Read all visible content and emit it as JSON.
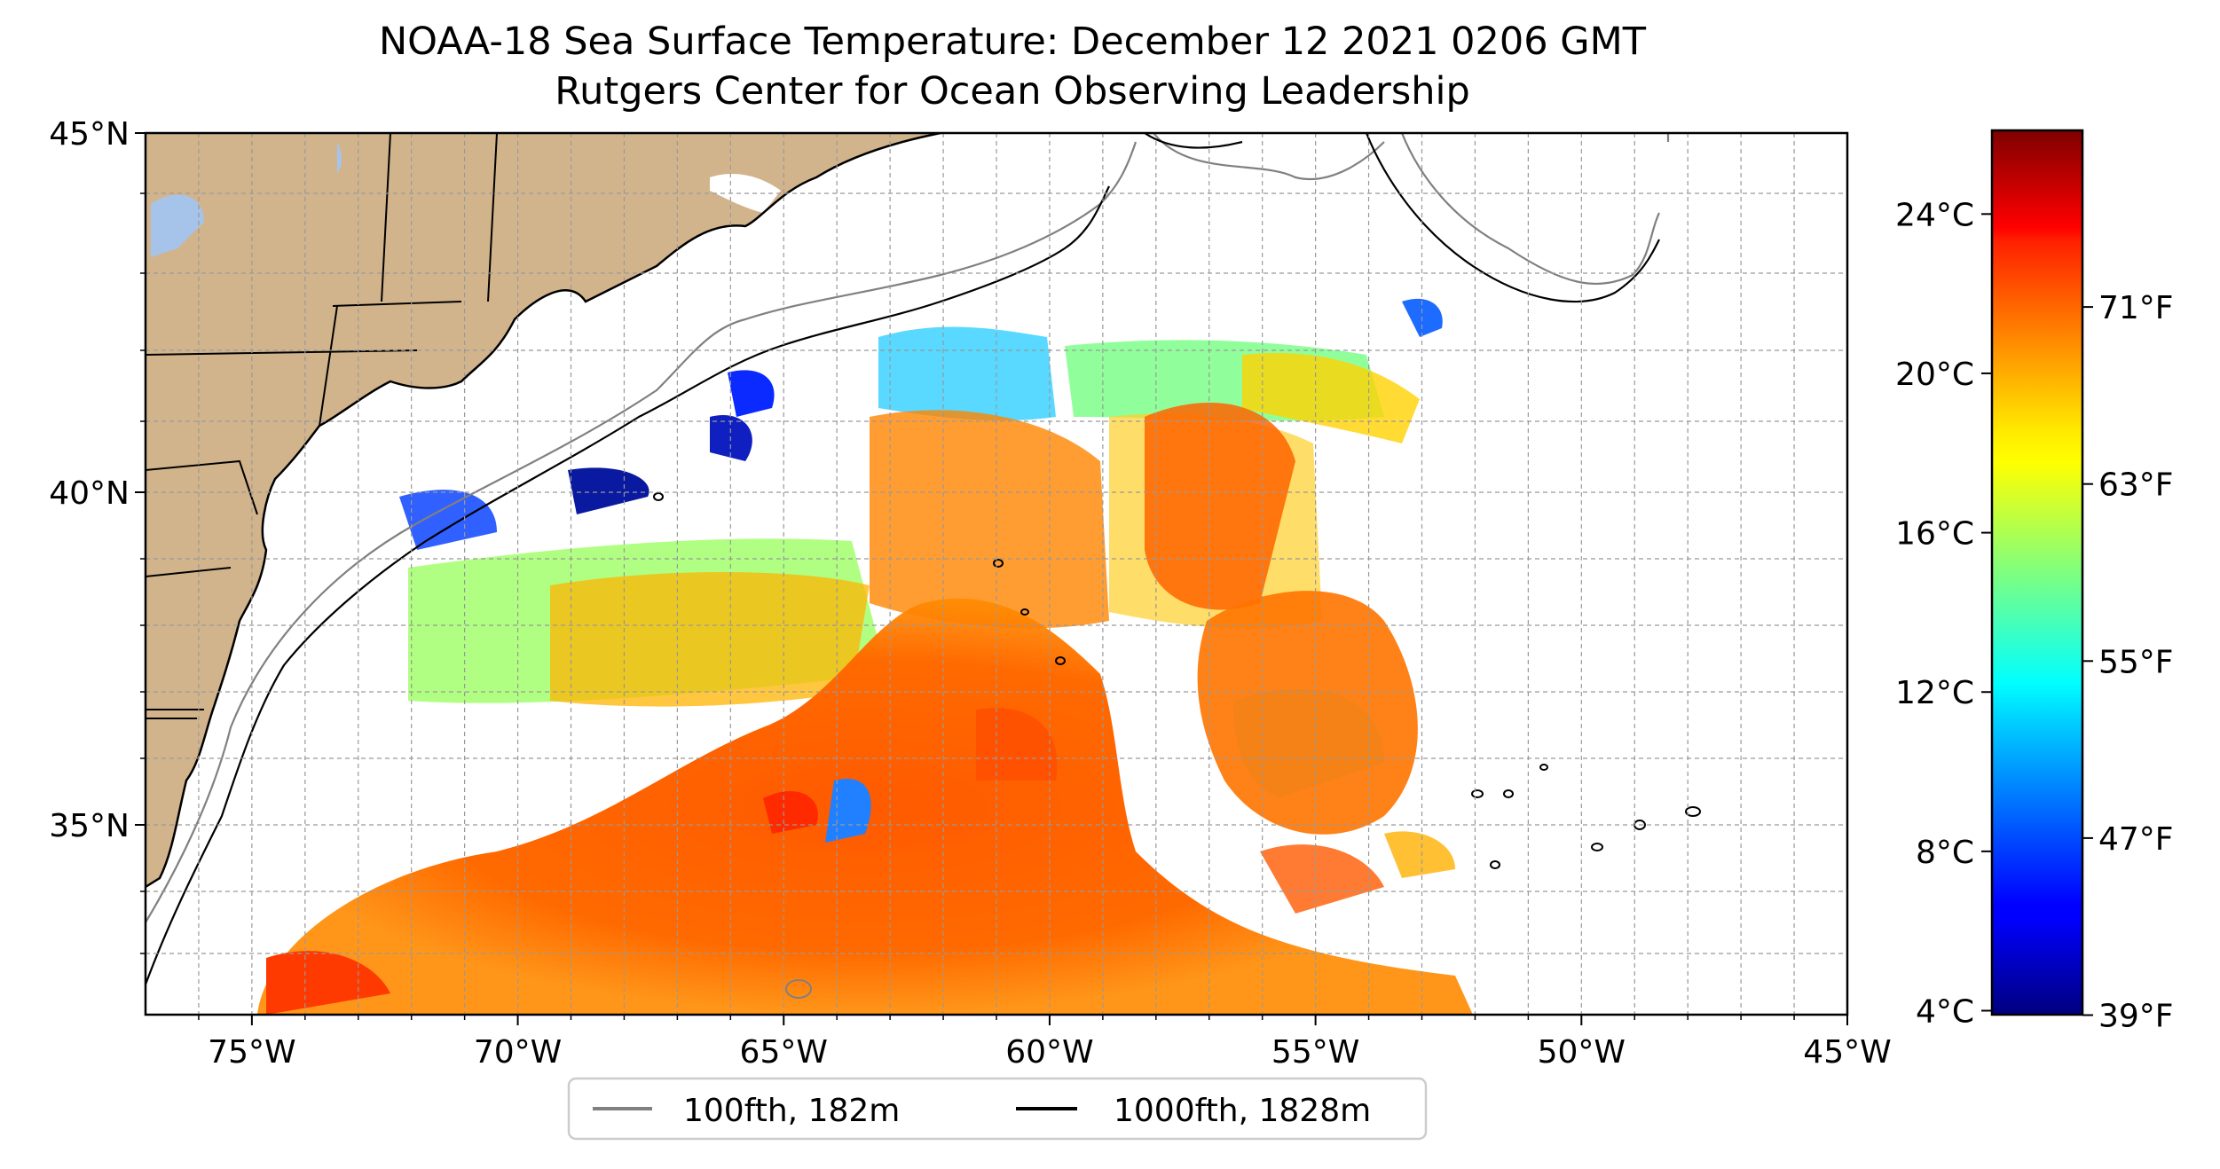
{
  "title": "NOAA-18 Sea Surface Temperature: December 12 2021 0206 GMT",
  "subtitle": "Rutgers Center for Ocean Observing Leadership",
  "map": {
    "lon_ticks": [
      "75°W",
      "70°W",
      "65°W",
      "60°W",
      "55°W",
      "50°W",
      "45°W"
    ],
    "lat_ticks": [
      "45°N",
      "40°N",
      "35°N"
    ],
    "extent": {
      "lon": [
        -77,
        -45
      ],
      "lat": [
        32.2,
        45
      ]
    },
    "gridlines": true,
    "land_color": "#d2b48c",
    "lake_color": "#a6c4ea"
  },
  "legend": {
    "placement": "bottom-center",
    "items": [
      {
        "label": "100fth, 182m",
        "color": "#808080"
      },
      {
        "label": "1000fth, 1828m",
        "color": "#000000"
      }
    ]
  },
  "colorbar": {
    "colormap": "jet",
    "celsius_ticks": [
      "24°C",
      "20°C",
      "16°C",
      "12°C",
      "8°C",
      "4°C"
    ],
    "fahrenheit_ticks": [
      "71°F",
      "63°F",
      "55°F",
      "47°F",
      "39°F"
    ],
    "range_c": [
      3.9,
      26.1
    ]
  }
}
